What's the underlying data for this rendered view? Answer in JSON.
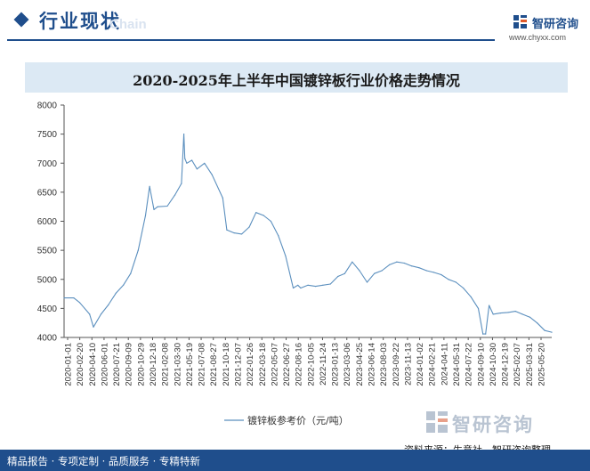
{
  "header": {
    "section_title": "行业现状",
    "section_ghost": "Chain",
    "brand_name": "智研咨询",
    "brand_url": "www.chyxx.com"
  },
  "footer": {
    "left_text": "精品报告 · 专项定制 · 品质服务 · 专精特新",
    "source_text": "资料来源：生意社，智研咨询整理",
    "logo_text": "智研咨询"
  },
  "colors": {
    "brand": "#1f4e8c",
    "title_band": "#dce9f4",
    "line": "#5b8fbe"
  },
  "chart_data": {
    "type": "line",
    "title": "2020-2025年上半年中国镀锌板行业价格走势情况",
    "xlabel": "",
    "ylabel": "",
    "ylim": [
      4000,
      8000
    ],
    "y_ticks": [
      4000,
      4500,
      5000,
      5500,
      6000,
      6500,
      7000,
      7500,
      8000
    ],
    "grid": false,
    "legend_position": "bottom-center",
    "x_tick_labels": [
      "2020-01-01",
      "2020-02-20",
      "2020-04-10",
      "2020-06-01",
      "2020-07-21",
      "2020-09-09",
      "2020-10-29",
      "2020-12-18",
      "2021-02-08",
      "2021-03-30",
      "2021-05-19",
      "2021-07-08",
      "2021-08-27",
      "2021-10-18",
      "2021-12-07",
      "2022-01-26",
      "2022-03-18",
      "2022-05-07",
      "2022-06-27",
      "2022-08-16",
      "2022-10-05",
      "2022-11-24",
      "2023-01-13",
      "2023-03-06",
      "2023-04-25",
      "2023-06-14",
      "2023-08-03",
      "2023-09-22",
      "2023-11-13",
      "2024-01-02",
      "2024-02-21",
      "2024-04-11",
      "2024-05-31",
      "2024-07-22",
      "2024-09-10",
      "2024-10-30",
      "2024-12-19",
      "2025-02-07",
      "2025-03-31",
      "2025-05-20"
    ],
    "series": [
      {
        "name": "镀锌板参考价（元/吨）",
        "x": [
          "2020-01-01",
          "2020-02-10",
          "2020-03-05",
          "2020-04-15",
          "2020-05-01",
          "2020-06-01",
          "2020-07-01",
          "2020-08-01",
          "2020-09-01",
          "2020-10-01",
          "2020-11-01",
          "2020-12-01",
          "2020-12-18",
          "2021-01-05",
          "2021-01-20",
          "2021-03-01",
          "2021-04-01",
          "2021-04-28",
          "2021-05-08",
          "2021-05-12",
          "2021-05-20",
          "2021-06-10",
          "2021-07-01",
          "2021-08-01",
          "2021-09-01",
          "2021-10-15",
          "2021-11-01",
          "2021-12-01",
          "2022-01-01",
          "2022-02-01",
          "2022-03-01",
          "2022-04-01",
          "2022-05-01",
          "2022-06-01",
          "2022-07-01",
          "2022-08-01",
          "2022-08-20",
          "2022-09-01",
          "2022-10-01",
          "2022-11-01",
          "2022-12-01",
          "2023-01-01",
          "2023-02-01",
          "2023-03-01",
          "2023-04-01",
          "2023-05-01",
          "2023-06-01",
          "2023-07-01",
          "2023-08-01",
          "2023-09-01",
          "2023-10-01",
          "2023-11-01",
          "2023-12-01",
          "2024-01-01",
          "2024-02-01",
          "2024-03-01",
          "2024-04-01",
          "2024-05-01",
          "2024-06-01",
          "2024-07-01",
          "2024-08-01",
          "2024-09-01",
          "2024-09-20",
          "2024-10-01",
          "2024-10-15",
          "2024-11-01",
          "2024-12-01",
          "2025-01-01",
          "2025-02-01",
          "2025-03-01",
          "2025-04-01",
          "2025-05-01",
          "2025-06-01",
          "2025-06-30"
        ],
        "values": [
          4680,
          4680,
          4600,
          4400,
          4180,
          4400,
          4560,
          4760,
          4900,
          5100,
          5500,
          6100,
          6600,
          6200,
          6250,
          6260,
          6450,
          6650,
          7500,
          7080,
          7000,
          7050,
          6900,
          7000,
          6800,
          6400,
          5850,
          5800,
          5780,
          5900,
          6150,
          6100,
          6000,
          5750,
          5400,
          4850,
          4900,
          4850,
          4900,
          4880,
          4900,
          4920,
          5050,
          5100,
          5300,
          5150,
          4950,
          5100,
          5150,
          5250,
          5300,
          5280,
          5230,
          5200,
          5150,
          5120,
          5080,
          5000,
          4950,
          4850,
          4700,
          4500,
          4060,
          4060,
          4550,
          4400,
          4420,
          4430,
          4450,
          4400,
          4350,
          4250,
          4120,
          4090
        ]
      }
    ]
  }
}
